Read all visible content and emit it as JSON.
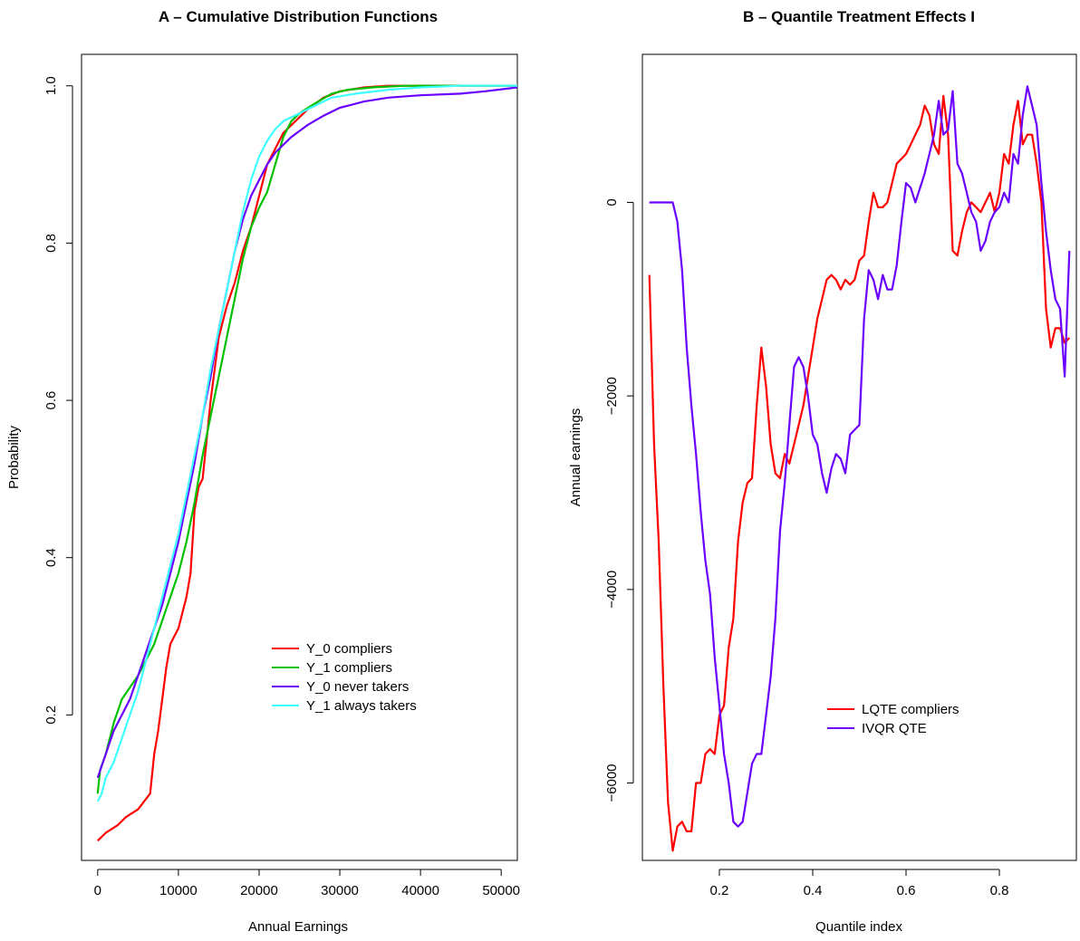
{
  "chart_data": [
    {
      "type": "line",
      "title": "A – Cumulative Distribution Functions",
      "xlabel": "Annual Earnings",
      "ylabel": "Probability",
      "xlim": [
        -2000,
        52000
      ],
      "ylim": [
        0.015,
        1.04
      ],
      "xticks": [
        0,
        10000,
        20000,
        30000,
        40000,
        50000
      ],
      "yticks": [
        0.2,
        0.4,
        0.6,
        0.8,
        1.0
      ],
      "xtick_labels": [
        "0",
        "10000",
        "20000",
        "30000",
        "40000",
        "50000"
      ],
      "ytick_labels": [
        "0.2",
        "0.4",
        "0.6",
        "0.8",
        "1.0"
      ],
      "legend_position": "lower-right",
      "grid": false,
      "series": [
        {
          "name": "Y_0 compliers",
          "color": "#ff0000",
          "x": [
            0,
            1000,
            2500,
            3500,
            5000,
            6500,
            7000,
            7500,
            8000,
            8500,
            9000,
            9500,
            10000,
            11000,
            11500,
            12000,
            12500,
            13000,
            13500,
            14000,
            14500,
            15000,
            16000,
            17000,
            18000,
            19000,
            20000,
            21000,
            22000,
            23000,
            24000,
            26000,
            28000,
            30000,
            33000,
            36000,
            40000,
            45000,
            52000
          ],
          "y": [
            0.04,
            0.05,
            0.06,
            0.07,
            0.08,
            0.1,
            0.15,
            0.18,
            0.22,
            0.26,
            0.29,
            0.3,
            0.31,
            0.35,
            0.38,
            0.46,
            0.49,
            0.5,
            0.55,
            0.6,
            0.64,
            0.68,
            0.72,
            0.75,
            0.79,
            0.82,
            0.86,
            0.9,
            0.92,
            0.94,
            0.95,
            0.97,
            0.985,
            0.993,
            0.998,
            1.0,
            1.0,
            1.0,
            1.0
          ]
        },
        {
          "name": "Y_1 compliers",
          "color": "#00c000",
          "x": [
            0,
            300,
            1000,
            2000,
            3000,
            4000,
            5000,
            6000,
            7000,
            8000,
            9000,
            10000,
            11000,
            12000,
            13000,
            14000,
            15000,
            16000,
            17000,
            18000,
            19000,
            20000,
            21000,
            22000,
            23000,
            24000,
            25000,
            27000,
            29000,
            31000,
            34000,
            38000,
            45000,
            52000
          ],
          "y": [
            0.1,
            0.13,
            0.15,
            0.19,
            0.22,
            0.235,
            0.25,
            0.27,
            0.29,
            0.32,
            0.35,
            0.38,
            0.42,
            0.47,
            0.53,
            0.58,
            0.63,
            0.68,
            0.73,
            0.78,
            0.82,
            0.845,
            0.865,
            0.9,
            0.935,
            0.955,
            0.965,
            0.978,
            0.99,
            0.995,
            0.998,
            1.0,
            1.0,
            1.0
          ]
        },
        {
          "name": "Y_0 never takers",
          "color": "#6a00ff",
          "x": [
            0,
            1000,
            2000,
            3000,
            4000,
            5000,
            6000,
            7000,
            8000,
            9000,
            10000,
            11000,
            12000,
            13000,
            14000,
            15000,
            16000,
            17000,
            18000,
            19000,
            20000,
            21000,
            22000,
            24000,
            26000,
            28000,
            30000,
            33000,
            36000,
            40000,
            45000,
            48000,
            52000
          ],
          "y": [
            0.12,
            0.15,
            0.18,
            0.2,
            0.22,
            0.25,
            0.28,
            0.31,
            0.34,
            0.38,
            0.42,
            0.47,
            0.52,
            0.58,
            0.63,
            0.69,
            0.74,
            0.79,
            0.83,
            0.86,
            0.88,
            0.9,
            0.915,
            0.935,
            0.95,
            0.962,
            0.972,
            0.98,
            0.985,
            0.988,
            0.99,
            0.993,
            0.998
          ]
        },
        {
          "name": "Y_1 always takers",
          "color": "#40ffff",
          "x": [
            0,
            500,
            1000,
            2000,
            3000,
            4000,
            5000,
            6000,
            7000,
            8000,
            9000,
            10000,
            11000,
            12000,
            13000,
            14000,
            15000,
            16000,
            17000,
            18000,
            19000,
            20000,
            21000,
            22000,
            23000,
            25000,
            27000,
            29000,
            32000,
            36000,
            40000,
            45000,
            52000
          ],
          "y": [
            0.09,
            0.1,
            0.12,
            0.14,
            0.17,
            0.2,
            0.23,
            0.27,
            0.31,
            0.35,
            0.39,
            0.43,
            0.48,
            0.53,
            0.58,
            0.64,
            0.69,
            0.74,
            0.79,
            0.84,
            0.88,
            0.91,
            0.93,
            0.945,
            0.955,
            0.965,
            0.975,
            0.985,
            0.99,
            0.995,
            0.998,
            1.0,
            1.0
          ]
        }
      ]
    },
    {
      "type": "line",
      "title": "B – Quantile Treatment Effects I",
      "xlabel": "Quantile index",
      "ylabel": "Annual earnings",
      "xlim": [
        0.035,
        0.965
      ],
      "ylim": [
        -6800,
        1530
      ],
      "xticks": [
        0.2,
        0.4,
        0.6,
        0.8
      ],
      "yticks": [
        -6000,
        -4000,
        -2000,
        0
      ],
      "xtick_labels": [
        "0.2",
        "0.4",
        "0.6",
        "0.8"
      ],
      "ytick_labels": [
        "−6000",
        "−4000",
        "−2000",
        "0"
      ],
      "legend_position": "lower-right",
      "grid": false,
      "series": [
        {
          "name": "LQTE compliers",
          "color": "#ff0000",
          "x": [
            0.05,
            0.06,
            0.07,
            0.08,
            0.09,
            0.1,
            0.11,
            0.12,
            0.13,
            0.14,
            0.15,
            0.16,
            0.17,
            0.18,
            0.19,
            0.2,
            0.21,
            0.22,
            0.23,
            0.24,
            0.25,
            0.26,
            0.27,
            0.28,
            0.29,
            0.3,
            0.31,
            0.32,
            0.33,
            0.34,
            0.35,
            0.36,
            0.37,
            0.38,
            0.39,
            0.4,
            0.41,
            0.42,
            0.43,
            0.44,
            0.45,
            0.46,
            0.47,
            0.48,
            0.49,
            0.5,
            0.51,
            0.52,
            0.53,
            0.54,
            0.55,
            0.56,
            0.57,
            0.58,
            0.59,
            0.6,
            0.61,
            0.62,
            0.63,
            0.64,
            0.65,
            0.66,
            0.67,
            0.68,
            0.69,
            0.7,
            0.71,
            0.72,
            0.73,
            0.74,
            0.75,
            0.76,
            0.77,
            0.78,
            0.79,
            0.8,
            0.81,
            0.82,
            0.83,
            0.84,
            0.85,
            0.86,
            0.87,
            0.88,
            0.89,
            0.9,
            0.91,
            0.92,
            0.93,
            0.94,
            0.95
          ],
          "y": [
            -750,
            -2500,
            -3500,
            -5000,
            -6200,
            -6700,
            -6450,
            -6400,
            -6500,
            -6500,
            -6000,
            -6000,
            -5700,
            -5650,
            -5700,
            -5300,
            -5200,
            -4600,
            -4300,
            -3500,
            -3100,
            -2900,
            -2850,
            -2100,
            -1500,
            -1900,
            -2500,
            -2800,
            -2850,
            -2600,
            -2700,
            -2500,
            -2300,
            -2100,
            -1800,
            -1500,
            -1200,
            -1000,
            -800,
            -750,
            -800,
            -900,
            -800,
            -850,
            -800,
            -600,
            -550,
            -200,
            100,
            -50,
            -50,
            0,
            200,
            400,
            450,
            500,
            600,
            700,
            800,
            1000,
            900,
            600,
            500,
            1100,
            700,
            -500,
            -550,
            -300,
            -100,
            0,
            -50,
            -100,
            0,
            100,
            -100,
            100,
            500,
            400,
            800,
            1050,
            600,
            700,
            700,
            400,
            0,
            -1100,
            -1500,
            -1300,
            -1300,
            -1450,
            -1400
          ]
        },
        {
          "name": "IVQR QTE",
          "color": "#6a00ff",
          "x": [
            0.05,
            0.06,
            0.07,
            0.08,
            0.09,
            0.1,
            0.11,
            0.12,
            0.13,
            0.14,
            0.15,
            0.16,
            0.17,
            0.18,
            0.19,
            0.2,
            0.21,
            0.22,
            0.23,
            0.24,
            0.25,
            0.26,
            0.27,
            0.28,
            0.29,
            0.3,
            0.31,
            0.32,
            0.33,
            0.34,
            0.35,
            0.36,
            0.37,
            0.38,
            0.39,
            0.4,
            0.41,
            0.42,
            0.43,
            0.44,
            0.45,
            0.46,
            0.47,
            0.48,
            0.49,
            0.5,
            0.51,
            0.52,
            0.53,
            0.54,
            0.55,
            0.56,
            0.57,
            0.58,
            0.59,
            0.6,
            0.61,
            0.62,
            0.63,
            0.64,
            0.65,
            0.66,
            0.67,
            0.68,
            0.69,
            0.7,
            0.71,
            0.72,
            0.73,
            0.74,
            0.75,
            0.76,
            0.77,
            0.78,
            0.79,
            0.8,
            0.81,
            0.82,
            0.83,
            0.84,
            0.85,
            0.86,
            0.87,
            0.88,
            0.89,
            0.9,
            0.91,
            0.92,
            0.93,
            0.94,
            0.95
          ],
          "y": [
            0,
            0,
            0,
            0,
            0,
            0,
            -200,
            -700,
            -1500,
            -2100,
            -2600,
            -3200,
            -3700,
            -4050,
            -4700,
            -5200,
            -5700,
            -6000,
            -6400,
            -6450,
            -6400,
            -6100,
            -5800,
            -5700,
            -5700,
            -5300,
            -4900,
            -4300,
            -3400,
            -2900,
            -2300,
            -1700,
            -1600,
            -1700,
            -2000,
            -2400,
            -2500,
            -2800,
            -3000,
            -2750,
            -2600,
            -2650,
            -2800,
            -2400,
            -2350,
            -2300,
            -1200,
            -700,
            -800,
            -1000,
            -750,
            -900,
            -900,
            -650,
            -200,
            200,
            150,
            0,
            150,
            300,
            500,
            700,
            1050,
            700,
            750,
            1150,
            400,
            300,
            100,
            -100,
            -200,
            -500,
            -400,
            -200,
            -100,
            -50,
            100,
            0,
            500,
            400,
            900,
            1200,
            1000,
            800,
            200,
            -300,
            -700,
            -1000,
            -1100,
            -1800,
            -500
          ]
        }
      ]
    }
  ]
}
